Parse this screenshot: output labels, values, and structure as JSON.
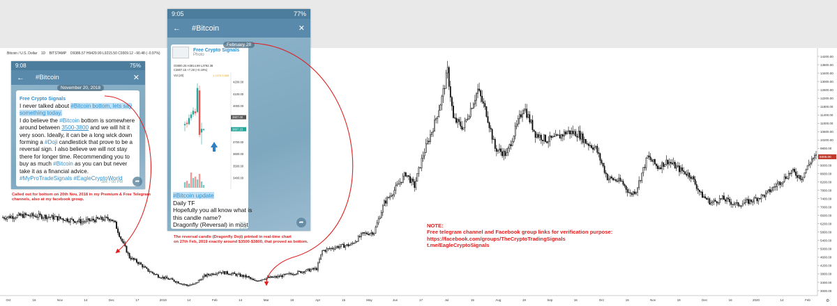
{
  "chart_title": {
    "symbol": "Bitcoin / U.S. Dollar",
    "interval": "1D",
    "exchange": "BITSTAMP",
    "ohlc": "O9386.57 H9429.99 L9215.50 C9309.12 −90.48 (−0.97%)"
  },
  "chart_data": {
    "type": "candlestick",
    "title": "Bitcoin / U.S. Dollar · 1D · BITSTAMP",
    "y_ticks": [
      3000,
      3400,
      3800,
      4200,
      4600,
      5000,
      5400,
      5800,
      6200,
      6600,
      7000,
      7400,
      7800,
      8200,
      8600,
      9000,
      9400,
      9800,
      10200,
      10600,
      11000,
      11400,
      11800,
      12200,
      12600,
      13000,
      13400,
      13800,
      14200
    ],
    "y_tick_labels": [
      "3000.00",
      "3400.00",
      "3800.00",
      "4200.00",
      "4600.00",
      "5000.00",
      "5400.00",
      "5800.00",
      "6200.00",
      "6600.00",
      "7000.00",
      "7400.00",
      "7800.00",
      "8200.00",
      "8600.00",
      "9000.00",
      "9400.00",
      "9800.00",
      "10200.00",
      "10600.00",
      "11000.00",
      "11400.00",
      "11800.00",
      "12200.00",
      "12600.00",
      "13000.00",
      "13400.00",
      "13800.00",
      "14200.00"
    ],
    "ylim": [
      2900,
      14400
    ],
    "last_price_label": "9306.00",
    "x_ticks": [
      "Oct",
      "15",
      "Nov",
      "14",
      "Dec",
      "17",
      "2019",
      "14",
      "Feb",
      "14",
      "Mar",
      "18",
      "Apr",
      "15",
      "May",
      "Jun",
      "17",
      "Jul",
      "15",
      "Aug",
      "19",
      "Sep",
      "16",
      "Oct",
      "15",
      "Nov",
      "18",
      "Dec",
      "16",
      "2020",
      "14",
      "Feb"
    ],
    "anchors": [
      [
        0,
        6500
      ],
      [
        15,
        6600
      ],
      [
        30,
        6550
      ],
      [
        45,
        6400
      ],
      [
        55,
        6300
      ],
      [
        65,
        6400
      ],
      [
        75,
        6450
      ],
      [
        78,
        6200
      ],
      [
        82,
        5500
      ],
      [
        88,
        4600
      ],
      [
        95,
        4300
      ],
      [
        100,
        4000
      ],
      [
        108,
        3700
      ],
      [
        118,
        3500
      ],
      [
        128,
        3250
      ],
      [
        133,
        3300
      ],
      [
        140,
        3700
      ],
      [
        150,
        3900
      ],
      [
        160,
        3800
      ],
      [
        170,
        3650
      ],
      [
        175,
        3450
      ],
      [
        182,
        3600
      ],
      [
        190,
        3650
      ],
      [
        200,
        3800
      ],
      [
        210,
        3950
      ],
      [
        218,
        4050
      ],
      [
        222,
        4900
      ],
      [
        232,
        5100
      ],
      [
        242,
        5200
      ],
      [
        250,
        5700
      ],
      [
        258,
        5800
      ],
      [
        265,
        7200
      ],
      [
        272,
        7800
      ],
      [
        280,
        8600
      ],
      [
        286,
        8000
      ],
      [
        292,
        9500
      ],
      [
        300,
        11000
      ],
      [
        305,
        12200
      ],
      [
        309,
        13500
      ],
      [
        313,
        11200
      ],
      [
        320,
        10800
      ],
      [
        330,
        12600
      ],
      [
        336,
        11500
      ],
      [
        342,
        9800
      ],
      [
        350,
        9500
      ],
      [
        355,
        10500
      ],
      [
        362,
        11800
      ],
      [
        370,
        10500
      ],
      [
        378,
        10200
      ],
      [
        385,
        10300
      ],
      [
        392,
        10600
      ],
      [
        400,
        10500
      ],
      [
        405,
        10100
      ],
      [
        412,
        9800
      ],
      [
        420,
        8400
      ],
      [
        430,
        8200
      ],
      [
        436,
        7600
      ],
      [
        440,
        7800
      ],
      [
        448,
        9400
      ],
      [
        455,
        8900
      ],
      [
        462,
        9200
      ],
      [
        470,
        8800
      ],
      [
        478,
        8500
      ],
      [
        485,
        7600
      ],
      [
        492,
        7200
      ],
      [
        500,
        7400
      ],
      [
        510,
        7100
      ],
      [
        520,
        7300
      ],
      [
        530,
        7600
      ],
      [
        540,
        8200
      ],
      [
        548,
        8700
      ],
      [
        555,
        8400
      ],
      [
        562,
        9300
      ],
      [
        565,
        9400
      ]
    ]
  },
  "phone1": {
    "time": "9:08",
    "status_right": "75%",
    "channel": "#Bitcoin",
    "date": "November 20, 2018",
    "sender": "Free Crypto Signals",
    "text": {
      "t1": "I never talked about ",
      "t2": "#Bitcoin",
      "t3": " bottom, lets say something today.",
      "t4": "I do believe the ",
      "t5": "#Bitcoin",
      "t6": " bottom is somewhere around between ",
      "t7": "3500-3800",
      "t8": " and we will hit it very soon. Ideally, it can be a long wick down forming a ",
      "t9": "#Doji",
      "t10": " candlestick that prove to be a reversal sign. I also believe we will not stay there for longer time. Recommending you to buy as much ",
      "t11": "#Bitcoin",
      "t12": " as you can but never take it as a financial advice.",
      "t13": "#MyProTradeSignals #EagleCryptoWorld"
    },
    "meta": "384  7:00 PM"
  },
  "phone2": {
    "time": "9:05",
    "status_right": "77%",
    "channel": "#Bitcoin",
    "date": "February 28",
    "sender": "Free Crypto Signals",
    "photo_label": "Photo",
    "mini_chart": {
      "ohlc_line1": "O3800.25  H3814.99  L3792.38",
      "ohlc_line2": "C3807.15  +7.28 (+0.19%)",
      "vol_label": "Vol (20)",
      "ticks": [
        "4200.00",
        "4100.00",
        "4000.00",
        "3900.00",
        "3800.00",
        "3700.00",
        "3600.00",
        "3500.00",
        "3400.00"
      ],
      "price_tag_1": "3907.00",
      "price_tag_2": "3807.15",
      "small_label": "1.1376  5.568"
    },
    "text": {
      "l1": "#Bitcoin",
      "l1b": " update",
      "l2": "Daily TF",
      "l3": "Hopefully you all know what is this candle name?",
      "l4": "Dragonfly (Reversal) in most cases"
    },
    "meta": "363  9:54 AM"
  },
  "annotations": {
    "a1": "Called out for bottom on 20th Nov, 2018 in my Premium & Free Telegram channels, also at my facebook group.",
    "a2_line1": "The reversal candle (Dragonfly Doji) printed in real-time chart",
    "a2_line2": "on 27th Feb, 2019 exactly around $3500-$3800, that proved as bottom."
  },
  "note": {
    "title": "NOTE:",
    "line1": "Free telegram channel and Facebook group links for verification purpose:",
    "line2": "https://facebook.com/groups/TheCryptoTradingSignals",
    "line3": "t.me/EagleCryptoSignals"
  },
  "colors": {
    "annotation_red": "#e02020",
    "telegram_blue": "#5a8aab",
    "candle": "#000000",
    "price_tag_red": "#c0392b"
  }
}
